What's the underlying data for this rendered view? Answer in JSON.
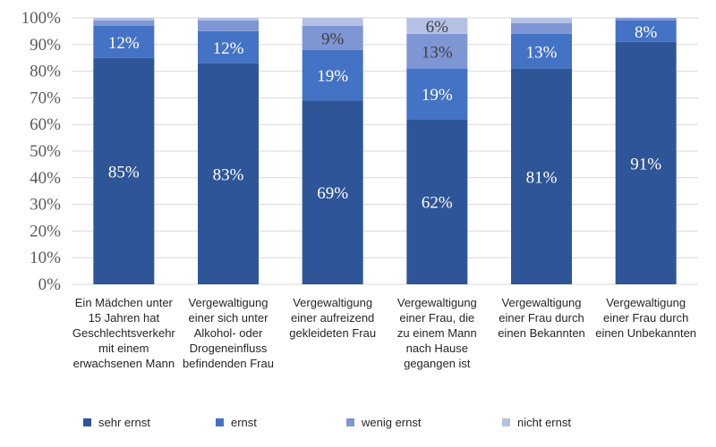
{
  "chart_data": {
    "type": "bar",
    "stacked": true,
    "categories": [
      [
        "Ein Mädchen unter",
        "15 Jahren hat",
        "Geschlechtsverkehr",
        "mit einem",
        "erwachsenen Mann"
      ],
      [
        "Vergewaltigung",
        "einer sich unter",
        "Alkohol- oder",
        "Drogeneinfluss",
        "befindenden Frau"
      ],
      [
        "Vergewaltigung",
        "einer aufreizend",
        "gekleideten Frau"
      ],
      [
        "Vergewaltigung",
        "einer Frau, die",
        "zu einem Mann",
        "nach Hause",
        "gegangen ist"
      ],
      [
        "Vergewaltigung",
        "einer Frau durch",
        "einen Bekannten"
      ],
      [
        "Vergewaltigung",
        "einer Frau durch",
        "einen Unbekannten"
      ]
    ],
    "series": [
      {
        "name": "sehr ernst",
        "color": "#2e5597",
        "values": [
          85,
          83,
          69,
          62,
          81,
          91
        ],
        "labels": [
          "85%",
          "83%",
          "69%",
          "62%",
          "81%",
          "91%"
        ]
      },
      {
        "name": "ernst",
        "color": "#4472c4",
        "values": [
          12,
          12,
          19,
          19,
          13,
          8
        ],
        "labels": [
          "12%",
          "12%",
          "19%",
          "19%",
          "13%",
          "8%"
        ]
      },
      {
        "name": "wenig ernst",
        "color": "#7e96d4",
        "values": [
          2,
          4,
          9,
          13,
          4,
          1
        ],
        "labels": [
          "",
          "",
          "9%",
          "13%",
          "",
          ""
        ]
      },
      {
        "name": "nicht ernst",
        "color": "#b4c1e5",
        "values": [
          1,
          1,
          3,
          6,
          2,
          0
        ],
        "labels": [
          "",
          "",
          "",
          "6%",
          "",
          ""
        ]
      }
    ],
    "yticks": [
      "0%",
      "10%",
      "20%",
      "30%",
      "40%",
      "50%",
      "60%",
      "70%",
      "80%",
      "90%",
      "100%"
    ],
    "ylim": [
      0,
      100
    ],
    "grid": true,
    "legend_position": "bottom"
  }
}
